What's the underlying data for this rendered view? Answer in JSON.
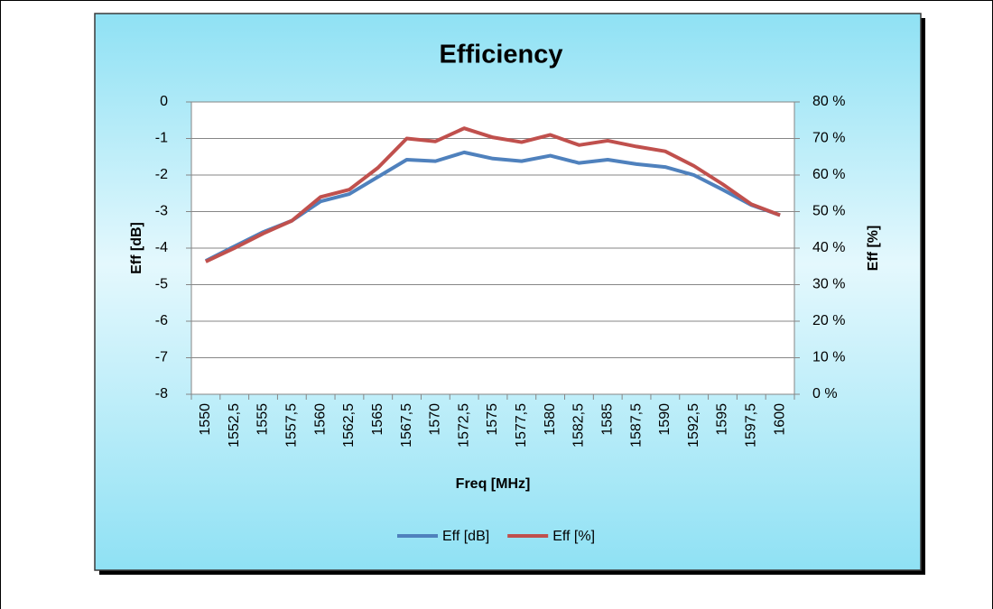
{
  "chart_data": {
    "type": "line",
    "title": "Efficiency",
    "x_label": "Freq [MHz]",
    "y_label": "Eff [dB]",
    "y2_label": "Eff [%]",
    "categories": [
      "1550",
      "1552,5",
      "1555",
      "1557,5",
      "1560",
      "1562,5",
      "1565",
      "1567,5",
      "1570",
      "1572,5",
      "1575",
      "1577,5",
      "1580",
      "1582,5",
      "1585",
      "1587,5",
      "1590",
      "1592,5",
      "1595",
      "1597,5",
      "1600"
    ],
    "series": [
      {
        "name": "Eff [dB]",
        "color": "#4f81bd",
        "values": [
          -4.35,
          -3.95,
          -3.56,
          -3.25,
          -2.72,
          -2.52,
          -2.05,
          -1.58,
          -1.62,
          -1.38,
          -1.55,
          -1.62,
          -1.47,
          -1.67,
          -1.58,
          -1.7,
          -1.78,
          -2.0,
          -2.4,
          -2.82,
          -3.1
        ]
      },
      {
        "name": "Eff [%]",
        "color": "#c0504d",
        "axis": "y2",
        "values": [
          36.3,
          40,
          44,
          47.5,
          54,
          56,
          62,
          70,
          69.2,
          72.8,
          70.3,
          69,
          71,
          68.2,
          69.4,
          67.8,
          66.5,
          62.5,
          57.5,
          52,
          49
        ]
      }
    ],
    "ylim": [
      -8,
      0
    ],
    "yticks": [
      0,
      -1,
      -2,
      -3,
      -4,
      -5,
      -6,
      -7,
      -8
    ],
    "y2lim": [
      0,
      80
    ],
    "y2ticks": [
      {
        "value": 80,
        "label": "80 %"
      },
      {
        "value": 70,
        "label": "70 %"
      },
      {
        "value": 60,
        "label": "60 %"
      },
      {
        "value": 50,
        "label": "50 %"
      },
      {
        "value": 40,
        "label": "40 %"
      },
      {
        "value": 30,
        "label": "30 %"
      },
      {
        "value": 20,
        "label": "20 %"
      },
      {
        "value": 10,
        "label": "10 %"
      },
      {
        "value": 0,
        "label": "0 %"
      }
    ],
    "grid": true,
    "legend": "bottom"
  }
}
